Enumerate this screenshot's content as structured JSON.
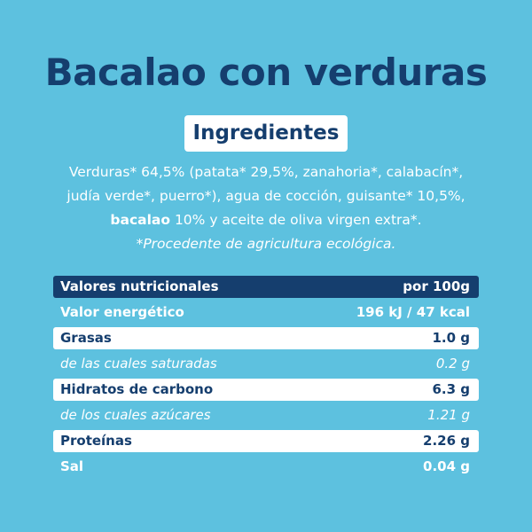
{
  "title": "Bacalao con verduras",
  "ingredients_heading": "Ingredientes",
  "ingredients": {
    "line1": "Verduras* 64,5% (patata* 29,5%, zanahoria*, calabacín*,",
    "line2": "judía verde*, puerro*), agua de cocción, guisante* 10,5%,",
    "line3_bold": "bacalao",
    "line3_rest": " 10% y aceite de oliva virgen extra*.",
    "note": "*Procedente de agricultura ecológica."
  },
  "nutrition": {
    "header_label": "Valores nutricionales",
    "header_value": "por 100g",
    "rows": [
      {
        "label": "Valor energético",
        "value": "196 kJ / 47 kcal"
      },
      {
        "label": "Grasas",
        "value": "1.0 g"
      },
      {
        "label": "de las cuales saturadas",
        "value": "0.2 g"
      },
      {
        "label": "Hidratos de carbono",
        "value": "6.3 g"
      },
      {
        "label": "de los cuales azúcares",
        "value": "1.21 g"
      },
      {
        "label": "Proteínas",
        "value": "2.26 g"
      },
      {
        "label": "Sal",
        "value": "0.04 g"
      }
    ]
  },
  "colors": {
    "background": "#5dc1df",
    "navy": "#153e6e",
    "white": "#ffffff"
  }
}
